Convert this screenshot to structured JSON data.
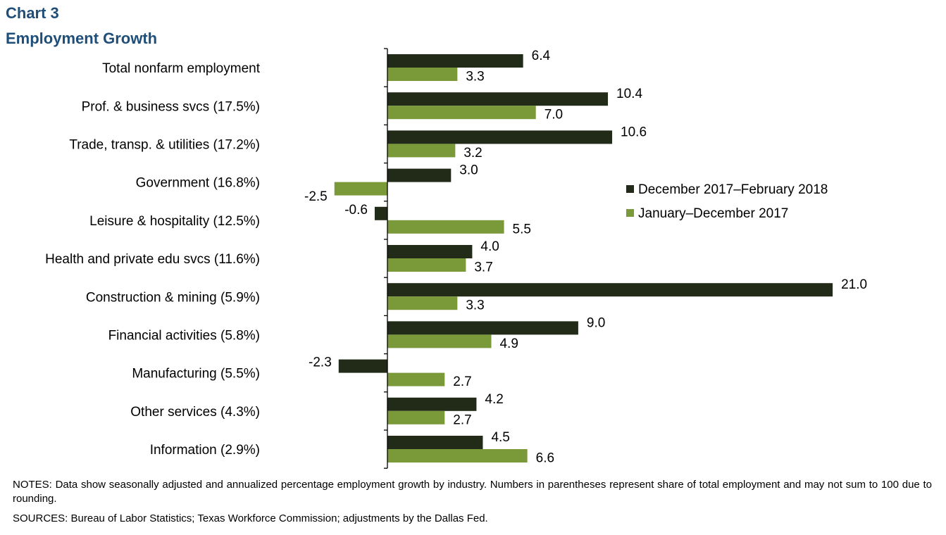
{
  "chart_label": "Chart 3",
  "title": "Employment  Growth",
  "notes": "NOTES: Data show seasonally adjusted and annualized percentage employment growth by industry. Numbers in parentheses represent share of total employment and may not sum to 100 due to rounding.",
  "sources": "SOURCES: Bureau of Labor Statistics; Texas Workforce Commission; adjustments by the Dallas Fed.",
  "colors": {
    "series1": "#222a18",
    "series2": "#7a9a3a",
    "title": "#1f4e79"
  },
  "chart_data": {
    "type": "bar",
    "orientation": "horizontal",
    "title": "Employment  Growth",
    "xlabel": "",
    "ylabel": "",
    "legend_position": "right",
    "categories": [
      "Total nonfarm employment",
      "Prof. & business svcs (17.5%)",
      "Trade, transp. & utilities (17.2%)",
      "Government (16.8%)",
      "Leisure & hospitality (12.5%)",
      "Health and private edu svcs (11.6%)",
      "Construction & mining (5.9%)",
      "Financial activities (5.8%)",
      "Manufacturing (5.5%)",
      "Other services (4.3%)",
      "Information (2.9%)"
    ],
    "series": [
      {
        "name": "December 2017–February 2018",
        "values": [
          6.4,
          10.4,
          10.6,
          3.0,
          -0.6,
          4.0,
          21.0,
          9.0,
          -2.3,
          4.2,
          4.5
        ],
        "labels": [
          "6.4",
          "10.4",
          "10.6",
          "3.0",
          "-0.6",
          "4.0",
          "21.0",
          "9.0",
          "-2.3",
          "4.2",
          "4.5"
        ]
      },
      {
        "name": "January–December 2017",
        "values": [
          3.3,
          7.0,
          3.2,
          -2.5,
          5.5,
          3.7,
          3.3,
          4.9,
          2.7,
          2.7,
          6.6
        ],
        "labels": [
          "3.3",
          "7.0",
          "3.2",
          "-2.5",
          "5.5",
          "3.7",
          "3.3",
          "4.9",
          "2.7",
          "2.7",
          "6.6"
        ]
      }
    ]
  }
}
